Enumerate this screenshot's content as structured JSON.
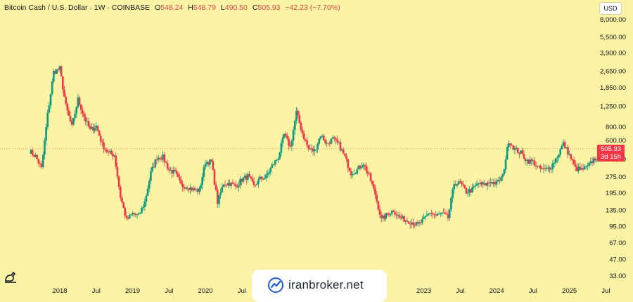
{
  "header": {
    "symbol": "Bitcoin Cash / U.S. Dollar · 1W · COINBASE",
    "o_label": "O",
    "o_value": "548.24",
    "h_label": "H",
    "h_value": "548.79",
    "l_label": "L",
    "l_value": "490.50",
    "c_label": "C",
    "c_value": "505.93",
    "change": "−42.23 (−7.70%)"
  },
  "currency_button": "USD",
  "price_tag": {
    "price": "505.93",
    "countdown": "3d 15h"
  },
  "watermark": {
    "text": "iranbroker.net"
  },
  "colors": {
    "background": "#fcf3a4",
    "up": "#089981",
    "down": "#f23645",
    "accent": "#f23645"
  },
  "chart_data": {
    "type": "candlestick",
    "scale": "log",
    "ylim": [
      28,
      9000
    ],
    "y_ticks": [
      8000,
      5500,
      3900,
      2650,
      1850,
      1250,
      800,
      600,
      400,
      275,
      195,
      135,
      95,
      67,
      47,
      33
    ],
    "y_tick_labels": [
      "8,000.00",
      "5,500.00",
      "3,900.00",
      "2,650.00",
      "1,850.00",
      "1,250.00",
      "800.00",
      "600.00",
      "400.00",
      "275.00",
      "195.00",
      "135.00",
      "95.00",
      "67.00",
      "47.00",
      "33.00"
    ],
    "x_tick_labels": [
      "2018",
      "Jul",
      "2019",
      "Jul",
      "2020",
      "Jul",
      "2023",
      "Jul",
      "2024",
      "Jul",
      "2025",
      "Jul"
    ],
    "x_tick_dates": [
      "2018-01",
      "2018-07",
      "2019-01",
      "2019-07",
      "2020-01",
      "2020-07",
      "2023-01",
      "2023-07",
      "2024-01",
      "2024-07",
      "2025-01",
      "2025-07"
    ],
    "last_price": 505.93,
    "anchors": [
      [
        "2017-08",
        480
      ],
      [
        "2017-09",
        430
      ],
      [
        "2017-10",
        330
      ],
      [
        "2017-11",
        1050
      ],
      [
        "2017-12",
        2600
      ],
      [
        "2018-01",
        2800
      ],
      [
        "2018-02",
        1250
      ],
      [
        "2018-03",
        800
      ],
      [
        "2018-04",
        1450
      ],
      [
        "2018-05",
        1000
      ],
      [
        "2018-06",
        750
      ],
      [
        "2018-07",
        820
      ],
      [
        "2018-08",
        550
      ],
      [
        "2018-09",
        460
      ],
      [
        "2018-10",
        440
      ],
      [
        "2018-11",
        180
      ],
      [
        "2018-12",
        110
      ],
      [
        "2019-01",
        125
      ],
      [
        "2019-02",
        120
      ],
      [
        "2019-03",
        160
      ],
      [
        "2019-04",
        300
      ],
      [
        "2019-05",
        420
      ],
      [
        "2019-06",
        420
      ],
      [
        "2019-07",
        320
      ],
      [
        "2019-08",
        300
      ],
      [
        "2019-09",
        230
      ],
      [
        "2019-10",
        225
      ],
      [
        "2019-11",
        210
      ],
      [
        "2019-12",
        205
      ],
      [
        "2020-01",
        380
      ],
      [
        "2020-02",
        380
      ],
      [
        "2020-03",
        160
      ],
      [
        "2020-04",
        240
      ],
      [
        "2020-05",
        240
      ],
      [
        "2020-06",
        225
      ],
      [
        "2020-07",
        260
      ],
      [
        "2020-08",
        280
      ],
      [
        "2020-09",
        225
      ],
      [
        "2020-10",
        265
      ],
      [
        "2020-11",
        275
      ],
      [
        "2020-12",
        350
      ],
      [
        "2021-01",
        420
      ],
      [
        "2021-02",
        680
      ],
      [
        "2021-03",
        520
      ],
      [
        "2021-04",
        1100
      ],
      [
        "2021-05",
        700
      ],
      [
        "2021-06",
        500
      ],
      [
        "2021-07",
        480
      ],
      [
        "2021-08",
        680
      ],
      [
        "2021-09",
        560
      ],
      [
        "2021-10",
        620
      ],
      [
        "2021-11",
        550
      ],
      [
        "2021-12",
        420
      ],
      [
        "2022-01",
        300
      ],
      [
        "2022-02",
        320
      ],
      [
        "2022-03",
        370
      ],
      [
        "2022-04",
        280
      ],
      [
        "2022-05",
        190
      ],
      [
        "2022-06",
        110
      ],
      [
        "2022-07",
        125
      ],
      [
        "2022-08",
        135
      ],
      [
        "2022-09",
        115
      ],
      [
        "2022-10",
        110
      ],
      [
        "2022-11",
        105
      ],
      [
        "2022-12",
        98
      ],
      [
        "2023-01",
        110
      ],
      [
        "2023-02",
        130
      ],
      [
        "2023-03",
        120
      ],
      [
        "2023-04",
        125
      ],
      [
        "2023-05",
        115
      ],
      [
        "2023-06",
        240
      ],
      [
        "2023-07",
        240
      ],
      [
        "2023-08",
        200
      ],
      [
        "2023-09",
        210
      ],
      [
        "2023-10",
        240
      ],
      [
        "2023-11",
        230
      ],
      [
        "2023-12",
        250
      ],
      [
        "2024-01",
        240
      ],
      [
        "2024-02",
        280
      ],
      [
        "2024-03",
        600
      ],
      [
        "2024-04",
        500
      ],
      [
        "2024-05",
        460
      ],
      [
        "2024-06",
        390
      ],
      [
        "2024-07",
        380
      ],
      [
        "2024-08",
        330
      ],
      [
        "2024-09",
        320
      ],
      [
        "2024-10",
        345
      ],
      [
        "2024-11",
        430
      ],
      [
        "2024-12",
        560
      ],
      [
        "2025-01",
        440
      ],
      [
        "2025-02",
        330
      ],
      [
        "2025-03",
        320
      ],
      [
        "2025-04",
        340
      ],
      [
        "2025-05",
        400
      ],
      [
        "2025-06",
        440
      ],
      [
        "2025-07",
        490
      ],
      [
        "2025-08",
        505.93
      ]
    ]
  }
}
